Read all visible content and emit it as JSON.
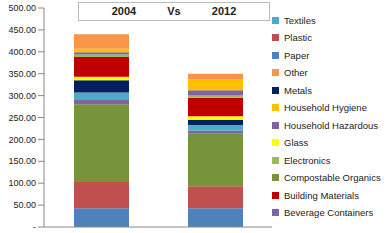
{
  "chart_data": {
    "type": "bar",
    "title": "2004 Vs 2012",
    "categories": [
      null,
      null
    ],
    "stacked": true,
    "grid": false,
    "legend": "right",
    "ylim": [
      0,
      500
    ],
    "yticks": [
      {
        "value": 0,
        "label": "-"
      },
      {
        "value": 50,
        "label": "50.00"
      },
      {
        "value": 100,
        "label": "100.00"
      },
      {
        "value": 150,
        "label": "150.00"
      },
      {
        "value": 200,
        "label": "200.00"
      },
      {
        "value": 250,
        "label": "250.00"
      },
      {
        "value": 300,
        "label": "300.00"
      },
      {
        "value": 350,
        "label": "350.00"
      },
      {
        "value": 400,
        "label": "400.00"
      },
      {
        "value": 450,
        "label": "450.00"
      },
      {
        "value": 500,
        "label": "500.00"
      }
    ],
    "series": [
      {
        "name": "Paper",
        "color": "#4f81bd",
        "values": [
          43,
          43
        ]
      },
      {
        "name": "Plastic",
        "color": "#c0504d",
        "values": [
          60,
          50
        ]
      },
      {
        "name": "Compostable Organics",
        "color": "#77933c",
        "values": [
          177,
          120
        ]
      },
      {
        "name": "Beverage Containers",
        "color": "#8064a2",
        "values": [
          10,
          7
        ]
      },
      {
        "name": "Textiles",
        "color": "#4bacc6",
        "values": [
          17,
          13
        ]
      },
      {
        "name": "Metals",
        "color": "#002060",
        "values": [
          28,
          12
        ]
      },
      {
        "name": "Glass",
        "color": "#ffff00",
        "values": [
          8,
          8
        ]
      },
      {
        "name": "Building Materials",
        "color": "#c00000",
        "values": [
          45,
          42
        ]
      },
      {
        "name": "Electronics",
        "color": "#9bbb59",
        "values": [
          6,
          5
        ]
      },
      {
        "name": "Household Hazardous",
        "color": "#8064a2",
        "values": [
          5,
          12
        ]
      },
      {
        "name": "Household Hygiene",
        "color": "#ffc000",
        "values": [
          8,
          25
        ]
      },
      {
        "name": "Other",
        "color": "#f79646",
        "values": [
          33,
          13
        ]
      }
    ]
  }
}
